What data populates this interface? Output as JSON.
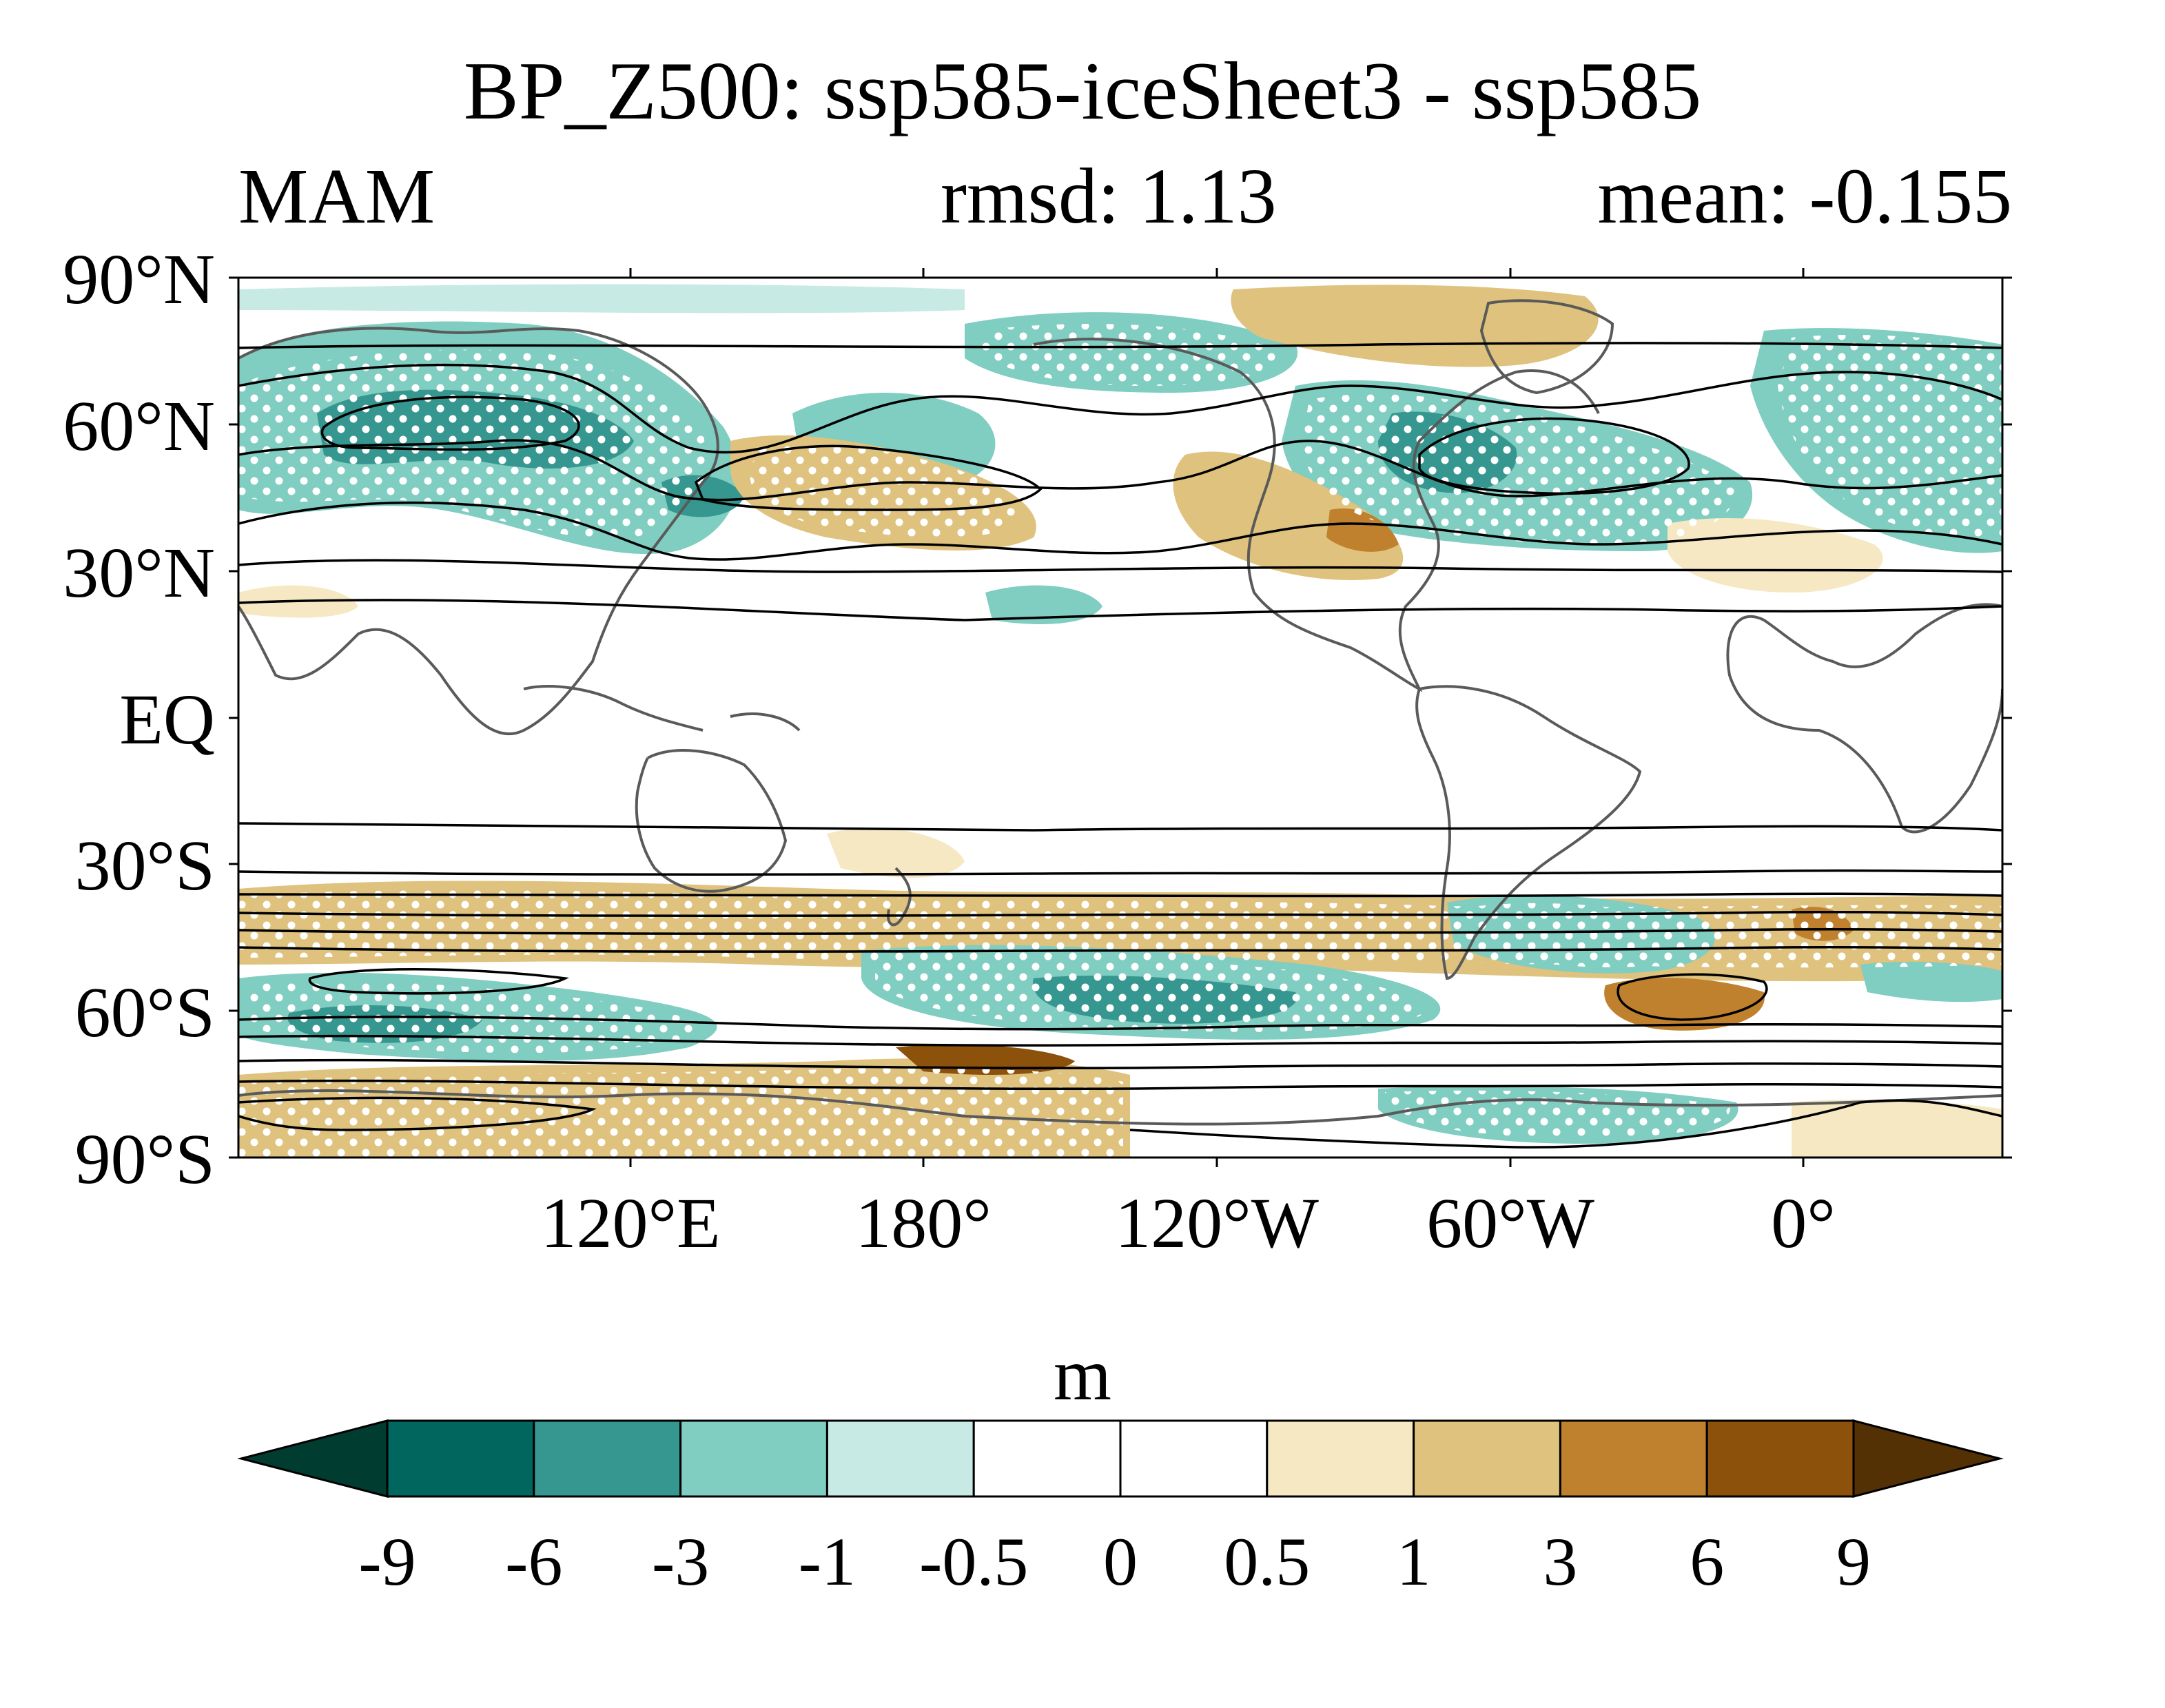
{
  "title": "BP_Z500: ssp585-iceSheet3 - ssp585",
  "season": "MAM",
  "rmsd_label": "rmsd: 1.13",
  "mean_label": "mean: -0.155",
  "units": "m",
  "lat_labels": [
    "90°N",
    "60°N",
    "30°N",
    "EQ",
    "30°S",
    "60°S",
    "90°S"
  ],
  "lon_labels": [
    "120°E",
    "180°",
    "120°W",
    "60°W",
    "0°"
  ],
  "colorbar": {
    "levels": [
      "-9",
      "-6",
      "-3",
      "-1",
      "-0.5",
      "0",
      "0.5",
      "1",
      "3",
      "6",
      "9"
    ],
    "colors": [
      "#003c30",
      "#01665e",
      "#35978f",
      "#80cdc1",
      "#c7eae5",
      "#ffffff",
      "#ffffff",
      "#f6e8c3",
      "#dfc27d",
      "#bf812d",
      "#8c510a",
      "#543005"
    ]
  },
  "legend_colors": {
    "coast": "#5a5a5a",
    "contour": "#000000",
    "stipple": "#ffffff"
  }
}
